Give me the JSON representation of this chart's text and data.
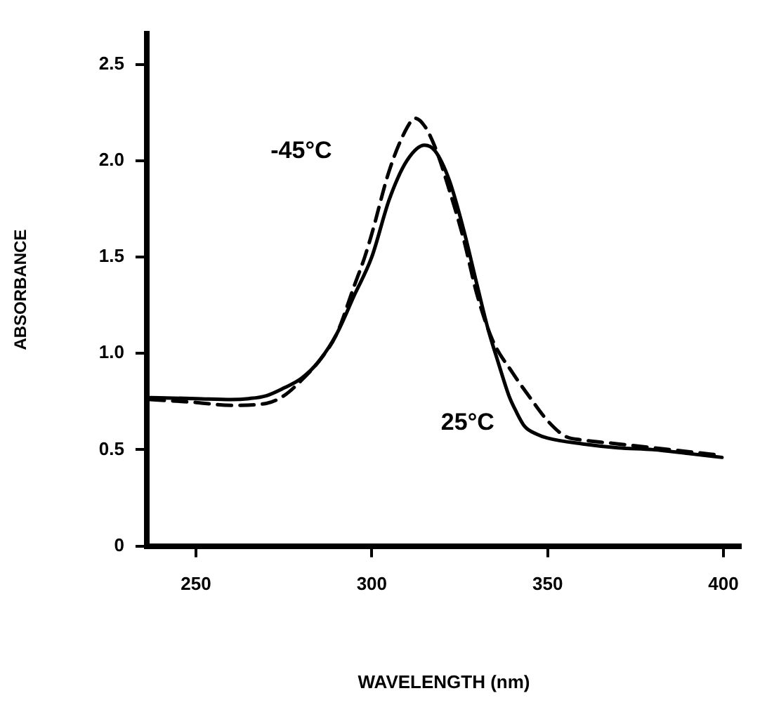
{
  "chart_data": {
    "type": "line",
    "xlabel": "WAVELENGTH (nm)",
    "ylabel": "ABSORBANCE",
    "xlim": [
      236,
      405
    ],
    "xticks": [
      250,
      300,
      350,
      400
    ],
    "ylim": [
      0,
      2.66
    ],
    "yticks": [
      0,
      0.5,
      {
        "value": 1,
        "label": "1.0"
      },
      1.5,
      {
        "value": 2,
        "label": "2.0"
      },
      2.5
    ],
    "grid": false,
    "legend": false,
    "marker": "none",
    "series": [
      {
        "color": "#000000",
        "line_style": "solid",
        "x": [
          237,
          250,
          260,
          265,
          270,
          275,
          280,
          285,
          290,
          295,
          300,
          305,
          310,
          315,
          318,
          322,
          326,
          330,
          333,
          336,
          339,
          341,
          343.5,
          347,
          350,
          360,
          370,
          380,
          390,
          399.6
        ],
        "values": [
          0.77,
          0.765,
          0.76,
          0.765,
          0.78,
          0.82,
          0.87,
          0.96,
          1.1,
          1.3,
          1.5,
          1.8,
          2.0,
          2.08,
          2.05,
          1.9,
          1.65,
          1.35,
          1.13,
          0.95,
          0.78,
          0.7,
          0.62,
          0.58,
          0.56,
          0.53,
          0.51,
          0.5,
          0.48,
          0.46
        ]
      },
      {
        "color": "#000000",
        "line_style": "dashed",
        "x": [
          237,
          250,
          260,
          270,
          275,
          280,
          285,
          290,
          295,
          298,
          300,
          305,
          310,
          312.3,
          315,
          318,
          322,
          326,
          330,
          334.3,
          340,
          345,
          350,
          355,
          360,
          370,
          380,
          390,
          399.6
        ],
        "values": [
          0.76,
          0.745,
          0.73,
          0.74,
          0.78,
          0.86,
          0.96,
          1.1,
          1.35,
          1.5,
          1.62,
          1.95,
          2.17,
          2.22,
          2.18,
          2.07,
          1.85,
          1.6,
          1.3,
          1.07,
          0.9,
          0.77,
          0.65,
          0.57,
          0.55,
          0.53,
          0.51,
          0.49,
          0.47
        ]
      }
    ],
    "annotations": [
      "-45°C",
      "25°C"
    ]
  }
}
